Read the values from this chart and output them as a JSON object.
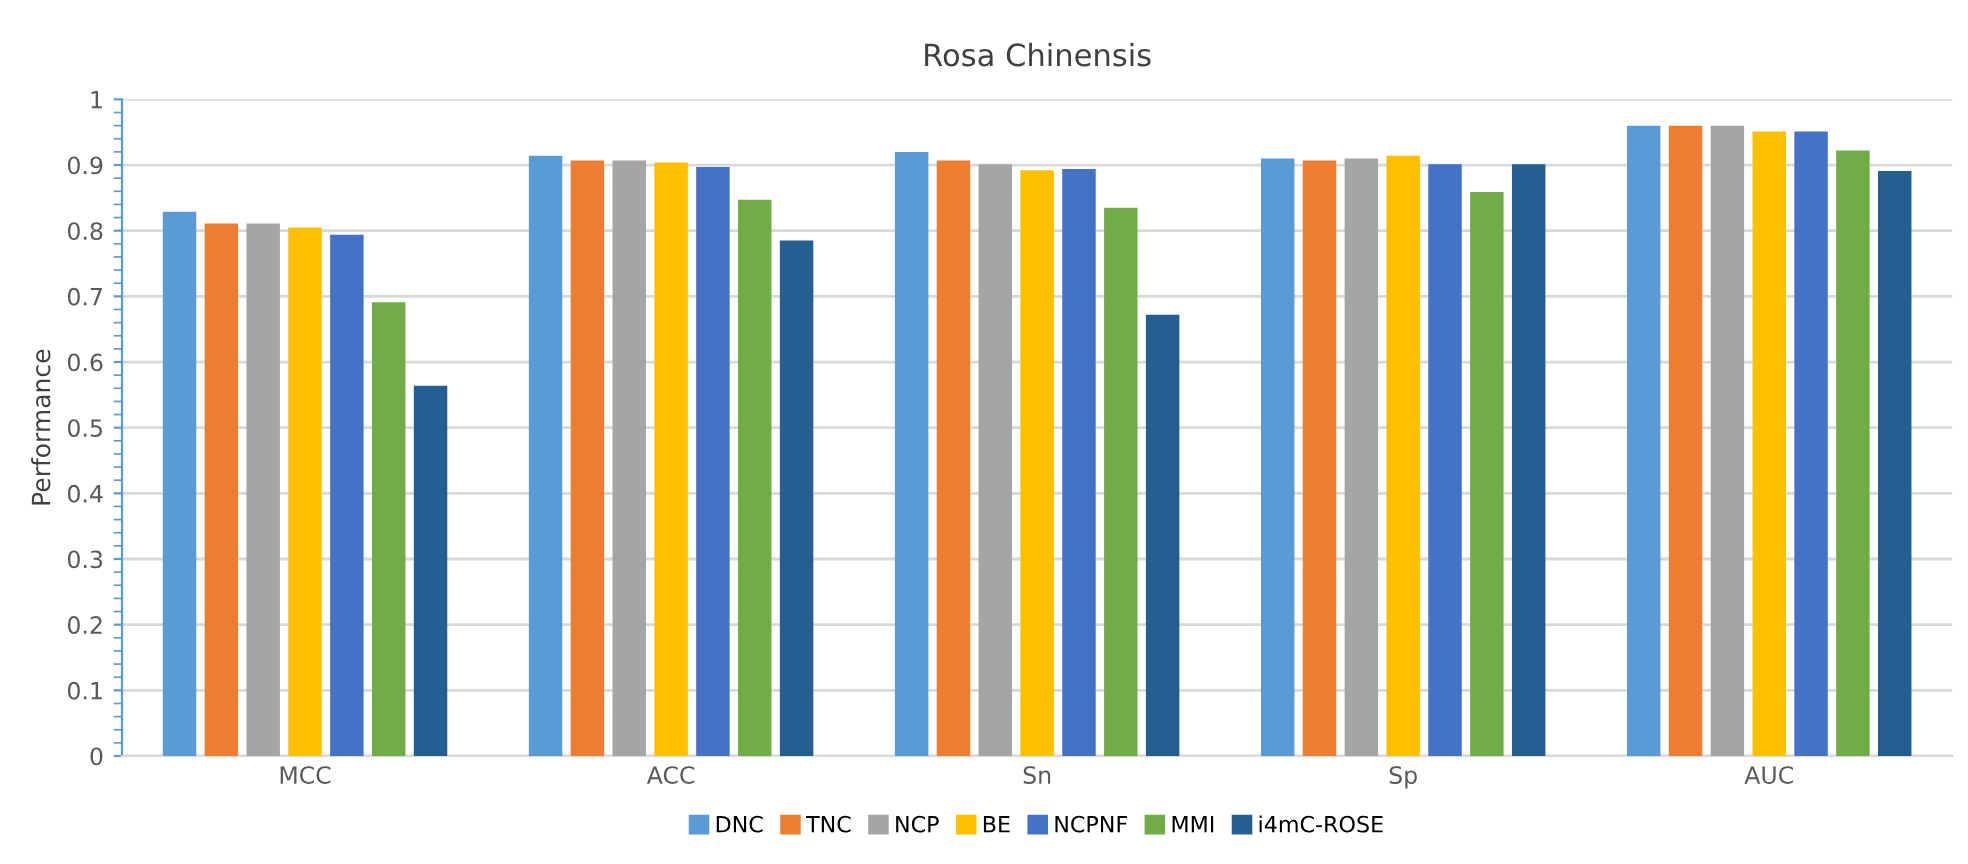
{
  "chart_data": {
    "type": "bar",
    "title": "Rosa Chinensis",
    "ylabel": "Performance",
    "categories": [
      "MCC",
      "ACC",
      "Sn",
      "Sp",
      "AUC"
    ],
    "series": [
      {
        "name": "DNC",
        "color": "#5b9bd5",
        "values": [
          0.829,
          0.914,
          0.92,
          0.91,
          0.96
        ]
      },
      {
        "name": "TNC",
        "color": "#ed7d31",
        "values": [
          0.811,
          0.907,
          0.907,
          0.907,
          0.96
        ]
      },
      {
        "name": "NCP",
        "color": "#a5a5a5",
        "values": [
          0.811,
          0.907,
          0.901,
          0.91,
          0.96
        ]
      },
      {
        "name": "BE",
        "color": "#ffc000",
        "values": [
          0.805,
          0.904,
          0.892,
          0.914,
          0.951
        ]
      },
      {
        "name": "NCPNF",
        "color": "#4472c4",
        "values": [
          0.794,
          0.897,
          0.894,
          0.901,
          0.951
        ]
      },
      {
        "name": "MMI",
        "color": "#70ad47",
        "values": [
          0.691,
          0.847,
          0.835,
          0.859,
          0.922
        ]
      },
      {
        "name": "i4mC-ROSE",
        "color": "#255e91",
        "values": [
          0.564,
          0.785,
          0.672,
          0.901,
          0.891
        ]
      }
    ],
    "ylim": [
      0,
      1
    ],
    "yticks": [
      0,
      0.1,
      0.2,
      0.3,
      0.4,
      0.5,
      0.6,
      0.7,
      0.8,
      0.9,
      1
    ],
    "grid": "y",
    "legend": "bottom"
  }
}
